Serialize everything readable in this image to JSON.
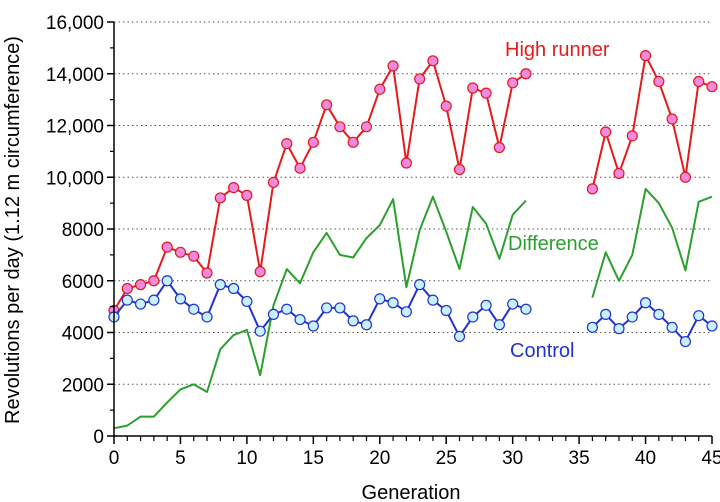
{
  "chart_data": {
    "type": "line",
    "title": "",
    "xlabel": "Generation",
    "ylabel": "Revolutions per day (1.12 m circumference)",
    "xlim": [
      0,
      45
    ],
    "ylim": [
      0,
      16000
    ],
    "xticks": [
      0,
      5,
      10,
      15,
      20,
      25,
      30,
      35,
      40,
      45
    ],
    "yticks": [
      0,
      2000,
      4000,
      6000,
      8000,
      10000,
      12000,
      14000,
      16000
    ],
    "ytick_labels": [
      "0",
      "2000",
      "4000",
      "6000",
      "8000",
      "10,000",
      "12,000",
      "14,000",
      "16,000"
    ],
    "grid": "horizontal-dotted",
    "series": [
      {
        "name": "High runner",
        "color": "#e41a1c",
        "marker_color": "#f08ae0",
        "segments": [
          [
            [
              0,
              4850
            ],
            [
              1,
              5700
            ],
            [
              2,
              5850
            ],
            [
              3,
              6000
            ],
            [
              4,
              7300
            ],
            [
              5,
              7100
            ],
            [
              6,
              6950
            ],
            [
              7,
              6300
            ],
            [
              8,
              9200
            ],
            [
              9,
              9600
            ],
            [
              10,
              9300
            ],
            [
              11,
              6350
            ],
            [
              12,
              9800
            ],
            [
              13,
              11300
            ],
            [
              14,
              10350
            ],
            [
              15,
              11350
            ],
            [
              16,
              12800
            ],
            [
              17,
              11950
            ],
            [
              18,
              11350
            ],
            [
              19,
              11950
            ],
            [
              20,
              13400
            ],
            [
              21,
              14300
            ],
            [
              22,
              10550
            ],
            [
              23,
              13800
            ],
            [
              24,
              14500
            ],
            [
              25,
              12750
            ],
            [
              26,
              10300
            ],
            [
              27,
              13450
            ],
            [
              28,
              13250
            ],
            [
              29,
              11150
            ],
            [
              30,
              13650
            ],
            [
              31,
              14000
            ]
          ],
          [
            [
              36,
              9550
            ],
            [
              37,
              11750
            ],
            [
              38,
              10150
            ],
            [
              39,
              11600
            ],
            [
              40,
              14700
            ],
            [
              41,
              13700
            ],
            [
              42,
              12250
            ],
            [
              43,
              10000
            ],
            [
              44,
              13700
            ],
            [
              45,
              13500
            ]
          ]
        ]
      },
      {
        "name": "Difference",
        "color": "#2ca02c",
        "segments": [
          [
            [
              0,
              300
            ],
            [
              1,
              400
            ],
            [
              2,
              750
            ],
            [
              3,
              750
            ],
            [
              4,
              1300
            ],
            [
              5,
              1800
            ],
            [
              6,
              2000
            ],
            [
              7,
              1700
            ],
            [
              8,
              3350
            ],
            [
              9,
              3900
            ],
            [
              10,
              4100
            ],
            [
              11,
              2350
            ],
            [
              12,
              5050
            ],
            [
              13,
              6450
            ],
            [
              14,
              5900
            ],
            [
              15,
              7100
            ],
            [
              16,
              7850
            ],
            [
              17,
              7000
            ],
            [
              18,
              6900
            ],
            [
              19,
              7650
            ],
            [
              20,
              8150
            ],
            [
              21,
              9150
            ],
            [
              22,
              5750
            ],
            [
              23,
              7950
            ],
            [
              24,
              9250
            ],
            [
              25,
              7900
            ],
            [
              26,
              6450
            ],
            [
              27,
              8850
            ],
            [
              28,
              8200
            ],
            [
              29,
              6850
            ],
            [
              30,
              8550
            ],
            [
              31,
              9100
            ]
          ],
          [
            [
              36,
              5350
            ],
            [
              37,
              7100
            ],
            [
              38,
              6000
            ],
            [
              39,
              7000
            ],
            [
              40,
              9550
            ],
            [
              41,
              9000
            ],
            [
              42,
              8050
            ],
            [
              43,
              6400
            ],
            [
              44,
              9050
            ],
            [
              45,
              9250
            ]
          ]
        ]
      },
      {
        "name": "Control",
        "color": "#2233cc",
        "marker_color": "#c8f0ff",
        "segments": [
          [
            [
              0,
              4600
            ],
            [
              1,
              5250
            ],
            [
              2,
              5100
            ],
            [
              3,
              5250
            ],
            [
              4,
              6000
            ],
            [
              5,
              5300
            ],
            [
              6,
              4900
            ],
            [
              7,
              4600
            ],
            [
              8,
              5850
            ],
            [
              9,
              5700
            ],
            [
              10,
              5200
            ],
            [
              11,
              4050
            ],
            [
              12,
              4700
            ],
            [
              13,
              4900
            ],
            [
              14,
              4500
            ],
            [
              15,
              4250
            ],
            [
              16,
              4950
            ],
            [
              17,
              4950
            ],
            [
              18,
              4450
            ],
            [
              19,
              4300
            ],
            [
              20,
              5300
            ],
            [
              21,
              5150
            ],
            [
              22,
              4800
            ],
            [
              23,
              5850
            ],
            [
              24,
              5250
            ],
            [
              25,
              4850
            ],
            [
              26,
              3850
            ],
            [
              27,
              4600
            ],
            [
              28,
              5050
            ],
            [
              29,
              4300
            ],
            [
              30,
              5100
            ],
            [
              31,
              4900
            ]
          ],
          [
            [
              36,
              4200
            ],
            [
              37,
              4700
            ],
            [
              38,
              4150
            ],
            [
              39,
              4600
            ],
            [
              40,
              5150
            ],
            [
              41,
              4700
            ],
            [
              42,
              4200
            ],
            [
              43,
              3650
            ],
            [
              44,
              4650
            ],
            [
              45,
              4250
            ]
          ]
        ]
      }
    ],
    "labels": {
      "high_runner": "High runner",
      "difference": "Difference",
      "control": "Control"
    }
  }
}
